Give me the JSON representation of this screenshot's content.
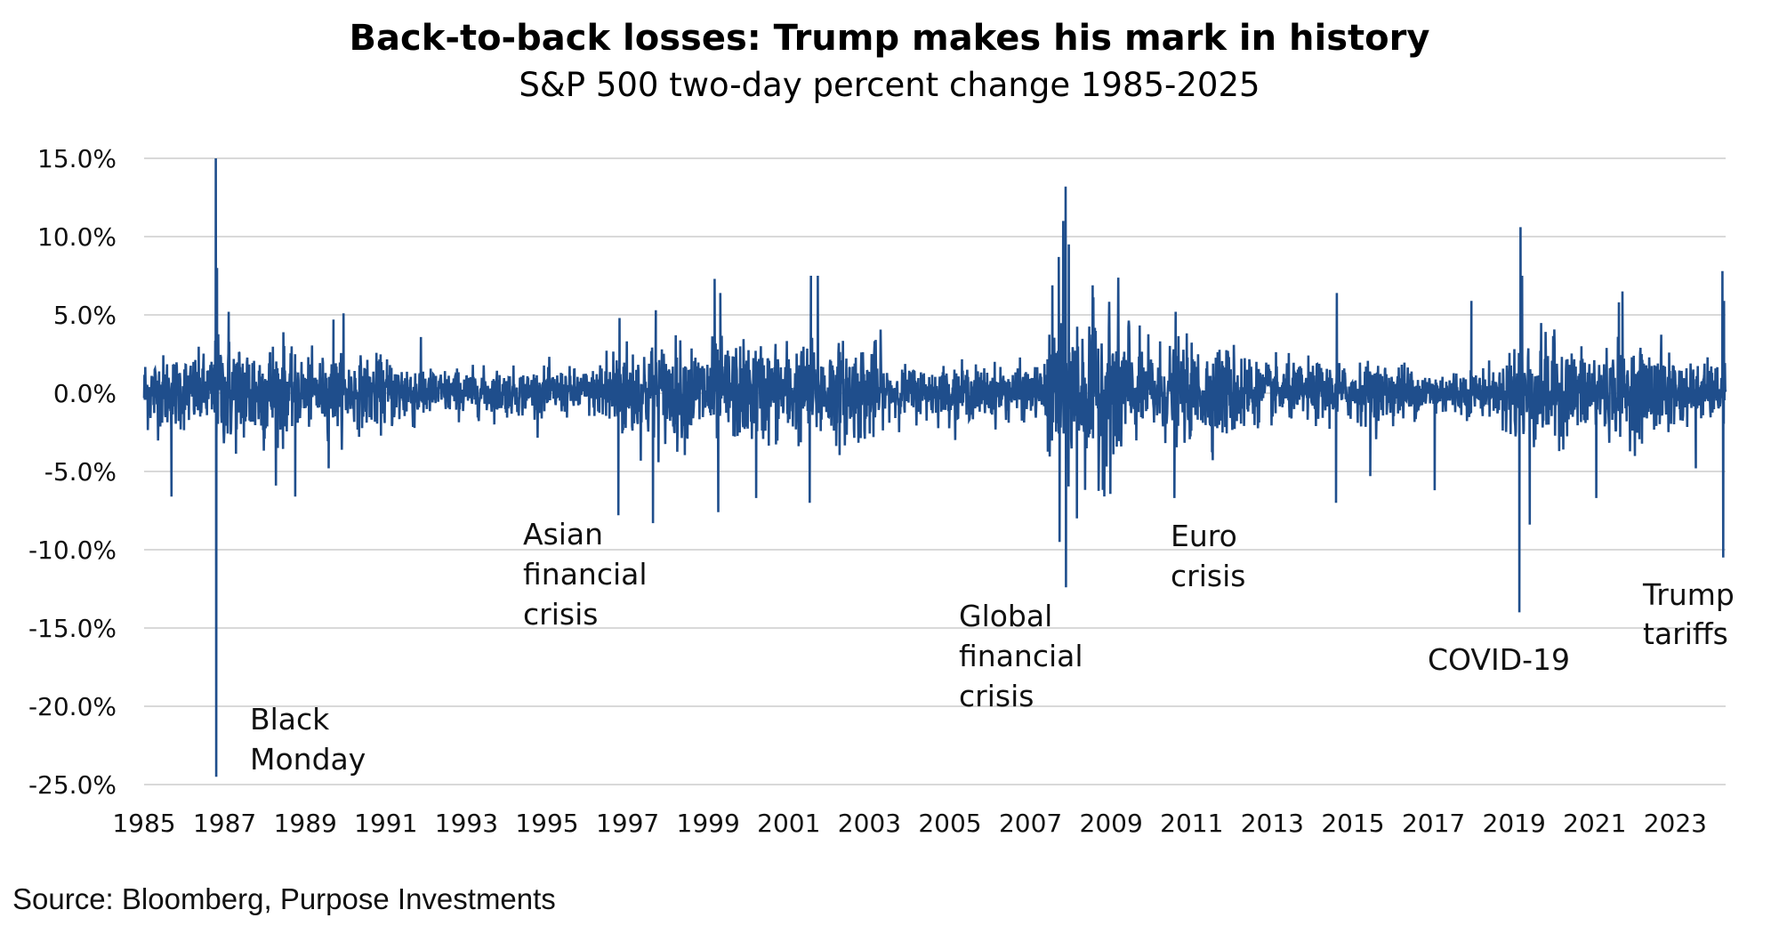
{
  "chart_data": {
    "type": "line",
    "title": "Back-to-back losses: Trump makes his mark in history",
    "subtitle": "S&P 500 two-day percent change 1985-2025",
    "xlabel": "",
    "ylabel": "",
    "source": "Source: Bloomberg, Purpose Investments",
    "xlim": [
      1985,
      2024.25
    ],
    "ylim": [
      -25,
      15
    ],
    "y_ticks": [
      "15.0%",
      "10.0%",
      "5.0%",
      "0.0%",
      "-5.0%",
      "-10.0%",
      "-15.0%",
      "-20.0%",
      "-25.0%"
    ],
    "y_tick_values": [
      15,
      10,
      5,
      0,
      -5,
      -10,
      -15,
      -20,
      -25
    ],
    "x_ticks": [
      "1985",
      "1987",
      "1989",
      "1991",
      "1993",
      "1995",
      "1997",
      "1999",
      "2001",
      "2003",
      "2005",
      "2007",
      "2009",
      "2011",
      "2013",
      "2015",
      "2017",
      "2019",
      "2021",
      "2023"
    ],
    "grid": "horizontal",
    "line_color": "#1f4e8c",
    "grid_color": "#d9d9d9",
    "typical_volatility": [
      {
        "from": 1985,
        "to": 1986.7,
        "std": 1.3
      },
      {
        "from": 1986.7,
        "to": 1988.5,
        "std": 1.9
      },
      {
        "from": 1988.5,
        "to": 1992,
        "std": 1.2
      },
      {
        "from": 1992,
        "to": 1996.3,
        "std": 0.8
      },
      {
        "from": 1996.3,
        "to": 2003.3,
        "std": 1.7
      },
      {
        "from": 2003.3,
        "to": 2007.4,
        "std": 0.9
      },
      {
        "from": 2007.4,
        "to": 2009.5,
        "std": 2.8
      },
      {
        "from": 2009.5,
        "to": 2012.5,
        "std": 1.6
      },
      {
        "from": 2012.5,
        "to": 2016.5,
        "std": 1.0
      },
      {
        "from": 2016.5,
        "to": 2018.8,
        "std": 0.8
      },
      {
        "from": 2018.8,
        "to": 2020.2,
        "std": 1.8
      },
      {
        "from": 2020.2,
        "to": 2023.0,
        "std": 1.5
      },
      {
        "from": 2023.0,
        "to": 2024.25,
        "std": 1.0
      }
    ],
    "extremes": [
      {
        "x": 1985.68,
        "y": -6.6
      },
      {
        "x": 1986.78,
        "y": 15.0
      },
      {
        "x": 1986.79,
        "y": -24.5
      },
      {
        "x": 1986.81,
        "y": 8.0
      },
      {
        "x": 1987.1,
        "y": 5.2
      },
      {
        "x": 1988.75,
        "y": -6.6
      },
      {
        "x": 1989.58,
        "y": -4.8
      },
      {
        "x": 1989.7,
        "y": 4.7
      },
      {
        "x": 1989.95,
        "y": 5.1
      },
      {
        "x": 1996.77,
        "y": -7.8
      },
      {
        "x": 1996.8,
        "y": 4.8
      },
      {
        "x": 1997.63,
        "y": -8.3
      },
      {
        "x": 1997.7,
        "y": 5.3
      },
      {
        "x": 1999.16,
        "y": 7.3
      },
      {
        "x": 1999.25,
        "y": -7.6
      },
      {
        "x": 1999.3,
        "y": 6.4
      },
      {
        "x": 2000.19,
        "y": -6.7
      },
      {
        "x": 2001.52,
        "y": -7.0
      },
      {
        "x": 2001.55,
        "y": 7.5
      },
      {
        "x": 2001.72,
        "y": 7.5
      },
      {
        "x": 2007.7,
        "y": 8.7
      },
      {
        "x": 2007.72,
        "y": -9.5
      },
      {
        "x": 2007.81,
        "y": 11.0
      },
      {
        "x": 2007.87,
        "y": 13.2
      },
      {
        "x": 2007.88,
        "y": -12.4
      },
      {
        "x": 2007.95,
        "y": 9.5
      },
      {
        "x": 2008.15,
        "y": -8.0
      },
      {
        "x": 2010.57,
        "y": -6.7
      },
      {
        "x": 2010.6,
        "y": 5.2
      },
      {
        "x": 2014.58,
        "y": -7.0
      },
      {
        "x": 2014.6,
        "y": 6.4
      },
      {
        "x": 2015.43,
        "y": -5.3
      },
      {
        "x": 2017.03,
        "y": -6.2
      },
      {
        "x": 2017.94,
        "y": 5.9
      },
      {
        "x": 2019.13,
        "y": -14.0
      },
      {
        "x": 2019.16,
        "y": 10.6
      },
      {
        "x": 2019.2,
        "y": 7.5
      },
      {
        "x": 2019.39,
        "y": -8.4
      },
      {
        "x": 2021.04,
        "y": -6.7
      },
      {
        "x": 2021.69,
        "y": 6.5
      },
      {
        "x": 2021.6,
        "y": 5.8
      },
      {
        "x": 2023.51,
        "y": -4.8
      },
      {
        "x": 2024.17,
        "y": 7.8
      },
      {
        "x": 2024.19,
        "y": -10.5
      },
      {
        "x": 2024.21,
        "y": 5.9
      }
    ],
    "annotations": [
      {
        "lines": [
          "Black",
          "Monday"
        ]
      },
      {
        "lines": [
          "Asian",
          "financial",
          "crisis"
        ]
      },
      {
        "lines": [
          "Global",
          "financial",
          "crisis"
        ]
      },
      {
        "lines": [
          "Euro",
          "crisis"
        ]
      },
      {
        "lines": [
          "COVID-19"
        ]
      },
      {
        "lines": [
          "Trump",
          "tariffs"
        ]
      }
    ]
  }
}
